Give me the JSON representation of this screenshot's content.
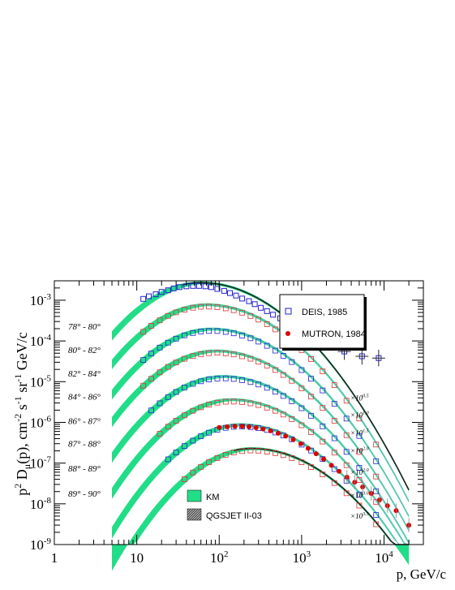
{
  "chart_data": {
    "type": "line",
    "xlabel": "p, GeV/c",
    "ylabel_parts": {
      "p2D": "p",
      "sup2": "2",
      "D": " D",
      "mu": "μ",
      "arg": "(p),  cm",
      "supm2": "-2",
      "s": " s",
      "supm1a": "-1",
      "sr": " sr",
      "supm1b": "-1",
      "gev": " GeV/c"
    },
    "xscale": "log",
    "yscale": "log",
    "xlim": [
      1,
      30000
    ],
    "ylim": [
      1e-09,
      0.003
    ],
    "x_ticks": [
      {
        "base": "1",
        "exp": ""
      },
      {
        "base": "10",
        "exp": ""
      },
      {
        "base": "10",
        "exp": "2"
      },
      {
        "base": "10",
        "exp": "3"
      },
      {
        "base": "10",
        "exp": "4"
      }
    ],
    "y_ticks": [
      {
        "base": "10",
        "exp": "-9"
      },
      {
        "base": "10",
        "exp": "-8"
      },
      {
        "base": "10",
        "exp": "-7"
      },
      {
        "base": "10",
        "exp": "-6"
      },
      {
        "base": "10",
        "exp": "-5"
      },
      {
        "base": "10",
        "exp": "-4"
      },
      {
        "base": "10",
        "exp": "-3"
      }
    ],
    "bands": [
      {
        "label": "78° - 80°",
        "peak": 0.0026,
        "peak_p": 60,
        "scale": "",
        "deis_exp": true
      },
      {
        "label": "80° - 82°",
        "peak": 0.00075,
        "peak_p": 70,
        "scale": "×10^0.5"
      },
      {
        "label": "82° - 84°",
        "peak": 0.00019,
        "peak_p": 80,
        "scale": "×10^1.0"
      },
      {
        "label": "84° - 86°",
        "peak": 5.5e-05,
        "peak_p": 90,
        "scale": "×10^1.5"
      },
      {
        "label": "86° - 87°",
        "peak": 1.3e-05,
        "peak_p": 110,
        "scale": "×10^2.0"
      },
      {
        "label": "87° - 88°",
        "peak": 3.5e-06,
        "peak_p": 140,
        "scale": "×10^2.0"
      },
      {
        "label": "88° - 89°",
        "peak": 8.5e-07,
        "peak_p": 180,
        "scale": "×10^3.0"
      },
      {
        "label": "89° - 90°",
        "peak": 2.2e-07,
        "peak_p": 250,
        "scale": "×10^3.5"
      }
    ],
    "scale_labels": [
      {
        "base": "×10",
        "exp": "0.5",
        "y": 4e-06
      },
      {
        "base": "×10",
        "exp": "1.0",
        "y": 1.5e-06
      },
      {
        "base": "×10",
        "exp": "1.5",
        "y": 5.5e-07
      },
      {
        "base": "×10",
        "exp": "2.0",
        "y": 2e-07
      },
      {
        "base": "×10",
        "exp": "2.0",
        "y": 6e-08
      },
      {
        "base": "×10",
        "exp": "3.0",
        "y": 1.6e-08
      },
      {
        "base": "×10",
        "exp": "3.5",
        "y": 5e-09
      }
    ],
    "band_label_y": [
      0.00023,
      6e-05,
      1.6e-05,
      4.3e-06,
      1.1e-06,
      3e-07,
      7.5e-08,
      1.8e-08
    ],
    "deis_points_top": [
      {
        "p": 12,
        "y": 0.00108
      },
      {
        "p": 14,
        "y": 0.00125
      },
      {
        "p": 17,
        "y": 0.0014
      },
      {
        "p": 20,
        "y": 0.0016
      },
      {
        "p": 24,
        "y": 0.00175
      },
      {
        "p": 28,
        "y": 0.00195
      },
      {
        "p": 33,
        "y": 0.0021
      },
      {
        "p": 40,
        "y": 0.0022
      },
      {
        "p": 48,
        "y": 0.00225
      },
      {
        "p": 57,
        "y": 0.00225
      },
      {
        "p": 68,
        "y": 0.0022
      },
      {
        "p": 80,
        "y": 0.0021
      },
      {
        "p": 95,
        "y": 0.0019
      },
      {
        "p": 115,
        "y": 0.0017
      },
      {
        "p": 135,
        "y": 0.0015
      },
      {
        "p": 160,
        "y": 0.0013
      },
      {
        "p": 190,
        "y": 0.0011
      },
      {
        "p": 230,
        "y": 0.00095
      },
      {
        "p": 270,
        "y": 0.0008
      },
      {
        "p": 320,
        "y": 0.00065
      },
      {
        "p": 380,
        "y": 0.00054
      },
      {
        "p": 450,
        "y": 0.00044
      },
      {
        "p": 550,
        "y": 0.00036
      },
      {
        "p": 650,
        "y": 0.0003
      },
      {
        "p": 1000,
        "y": 0.00022
      },
      {
        "p": 1300,
        "y": 0.00017
      },
      {
        "p": 2000,
        "y": 0.0001
      },
      {
        "p": 3300,
        "y": 5.5e-05
      },
      {
        "p": 5400,
        "y": 4.2e-05
      },
      {
        "p": 8600,
        "y": 3.8e-05
      }
    ],
    "mutron_points": [
      {
        "p": 100,
        "y": 7.5e-07
      },
      {
        "p": 125,
        "y": 7.8e-07
      },
      {
        "p": 155,
        "y": 8e-07
      },
      {
        "p": 190,
        "y": 8e-07
      },
      {
        "p": 230,
        "y": 7.8e-07
      },
      {
        "p": 280,
        "y": 7.4e-07
      },
      {
        "p": 340,
        "y": 6.9e-07
      },
      {
        "p": 420,
        "y": 6.2e-07
      },
      {
        "p": 520,
        "y": 5.4e-07
      },
      {
        "p": 640,
        "y": 4.6e-07
      },
      {
        "p": 790,
        "y": 3.8e-07
      },
      {
        "p": 980,
        "y": 3e-07
      },
      {
        "p": 1200,
        "y": 2.3e-07
      },
      {
        "p": 1500,
        "y": 1.7e-07
      },
      {
        "p": 1850,
        "y": 1.25e-07
      },
      {
        "p": 2300,
        "y": 8.8e-08
      },
      {
        "p": 2850,
        "y": 6.3e-08
      },
      {
        "p": 3550,
        "y": 4.5e-08
      },
      {
        "p": 4400,
        "y": 3.4e-08
      },
      {
        "p": 5500,
        "y": 2.6e-08
      },
      {
        "p": 7000,
        "y": 1.8e-08
      },
      {
        "p": 8800,
        "y": 1.25e-08
      },
      {
        "p": 11000,
        "y": 9e-09
      },
      {
        "p": 14000,
        "y": 6.8e-09
      },
      {
        "p": 20000,
        "y": 3e-09
      }
    ],
    "legend": [
      {
        "name": "DEIS, 1985",
        "marker": "open-square",
        "color": "#2222cc"
      },
      {
        "name": "MUTRON, 1984",
        "marker": "filled-circle",
        "color": "#dd0000"
      }
    ],
    "legend2": [
      {
        "name": "KM",
        "style": "green-fill",
        "color": "#22dd88"
      },
      {
        "name": "QGSJET II-03",
        "style": "hatched-gray",
        "color": "#444444"
      }
    ],
    "colors": {
      "band_green": "#22dd88",
      "deis_blue": "#2222cc",
      "deis_red": "#dd3333",
      "mutron_red": "#dd0000",
      "qgsjet_gray": "#333333"
    }
  }
}
